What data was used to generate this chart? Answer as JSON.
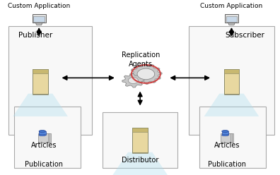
{
  "bg_color": "#ffffff",
  "text_color": "#000000",
  "publisher_label": "Publisher",
  "subscriber_label": "Subscriber",
  "replication_label": "Replication\nAgents",
  "distributor_label": "Distributor",
  "articles_left_label": "Articles",
  "articles_right_label": "Articles",
  "publication_left_label": "Publication",
  "publication_right_label": "Publication",
  "custom_app_left": "Custom Application",
  "custom_app_right": "Custom Application",
  "box_fc": "#f8f8f8",
  "box_ec": "#aaaaaa",
  "server_color": "#e8d8a0",
  "server_ec": "#888866",
  "gear_fc": "#c8c8c8",
  "gear_ec": "#888888",
  "gear_inner_fc": "#e8e8e8",
  "gear_red": "#cc4444",
  "cone_fc": "#aaddee",
  "db_page_fc": "#d0d0d0",
  "db_page_ec": "#888888",
  "db_cyl_fc": "#5588dd",
  "db_cyl_ec": "#224499",
  "monitor_body_fc": "#e0e0e0",
  "monitor_body_ec": "#606060",
  "monitor_screen_fc": "#c8d8e8",
  "arrow_color": "black"
}
